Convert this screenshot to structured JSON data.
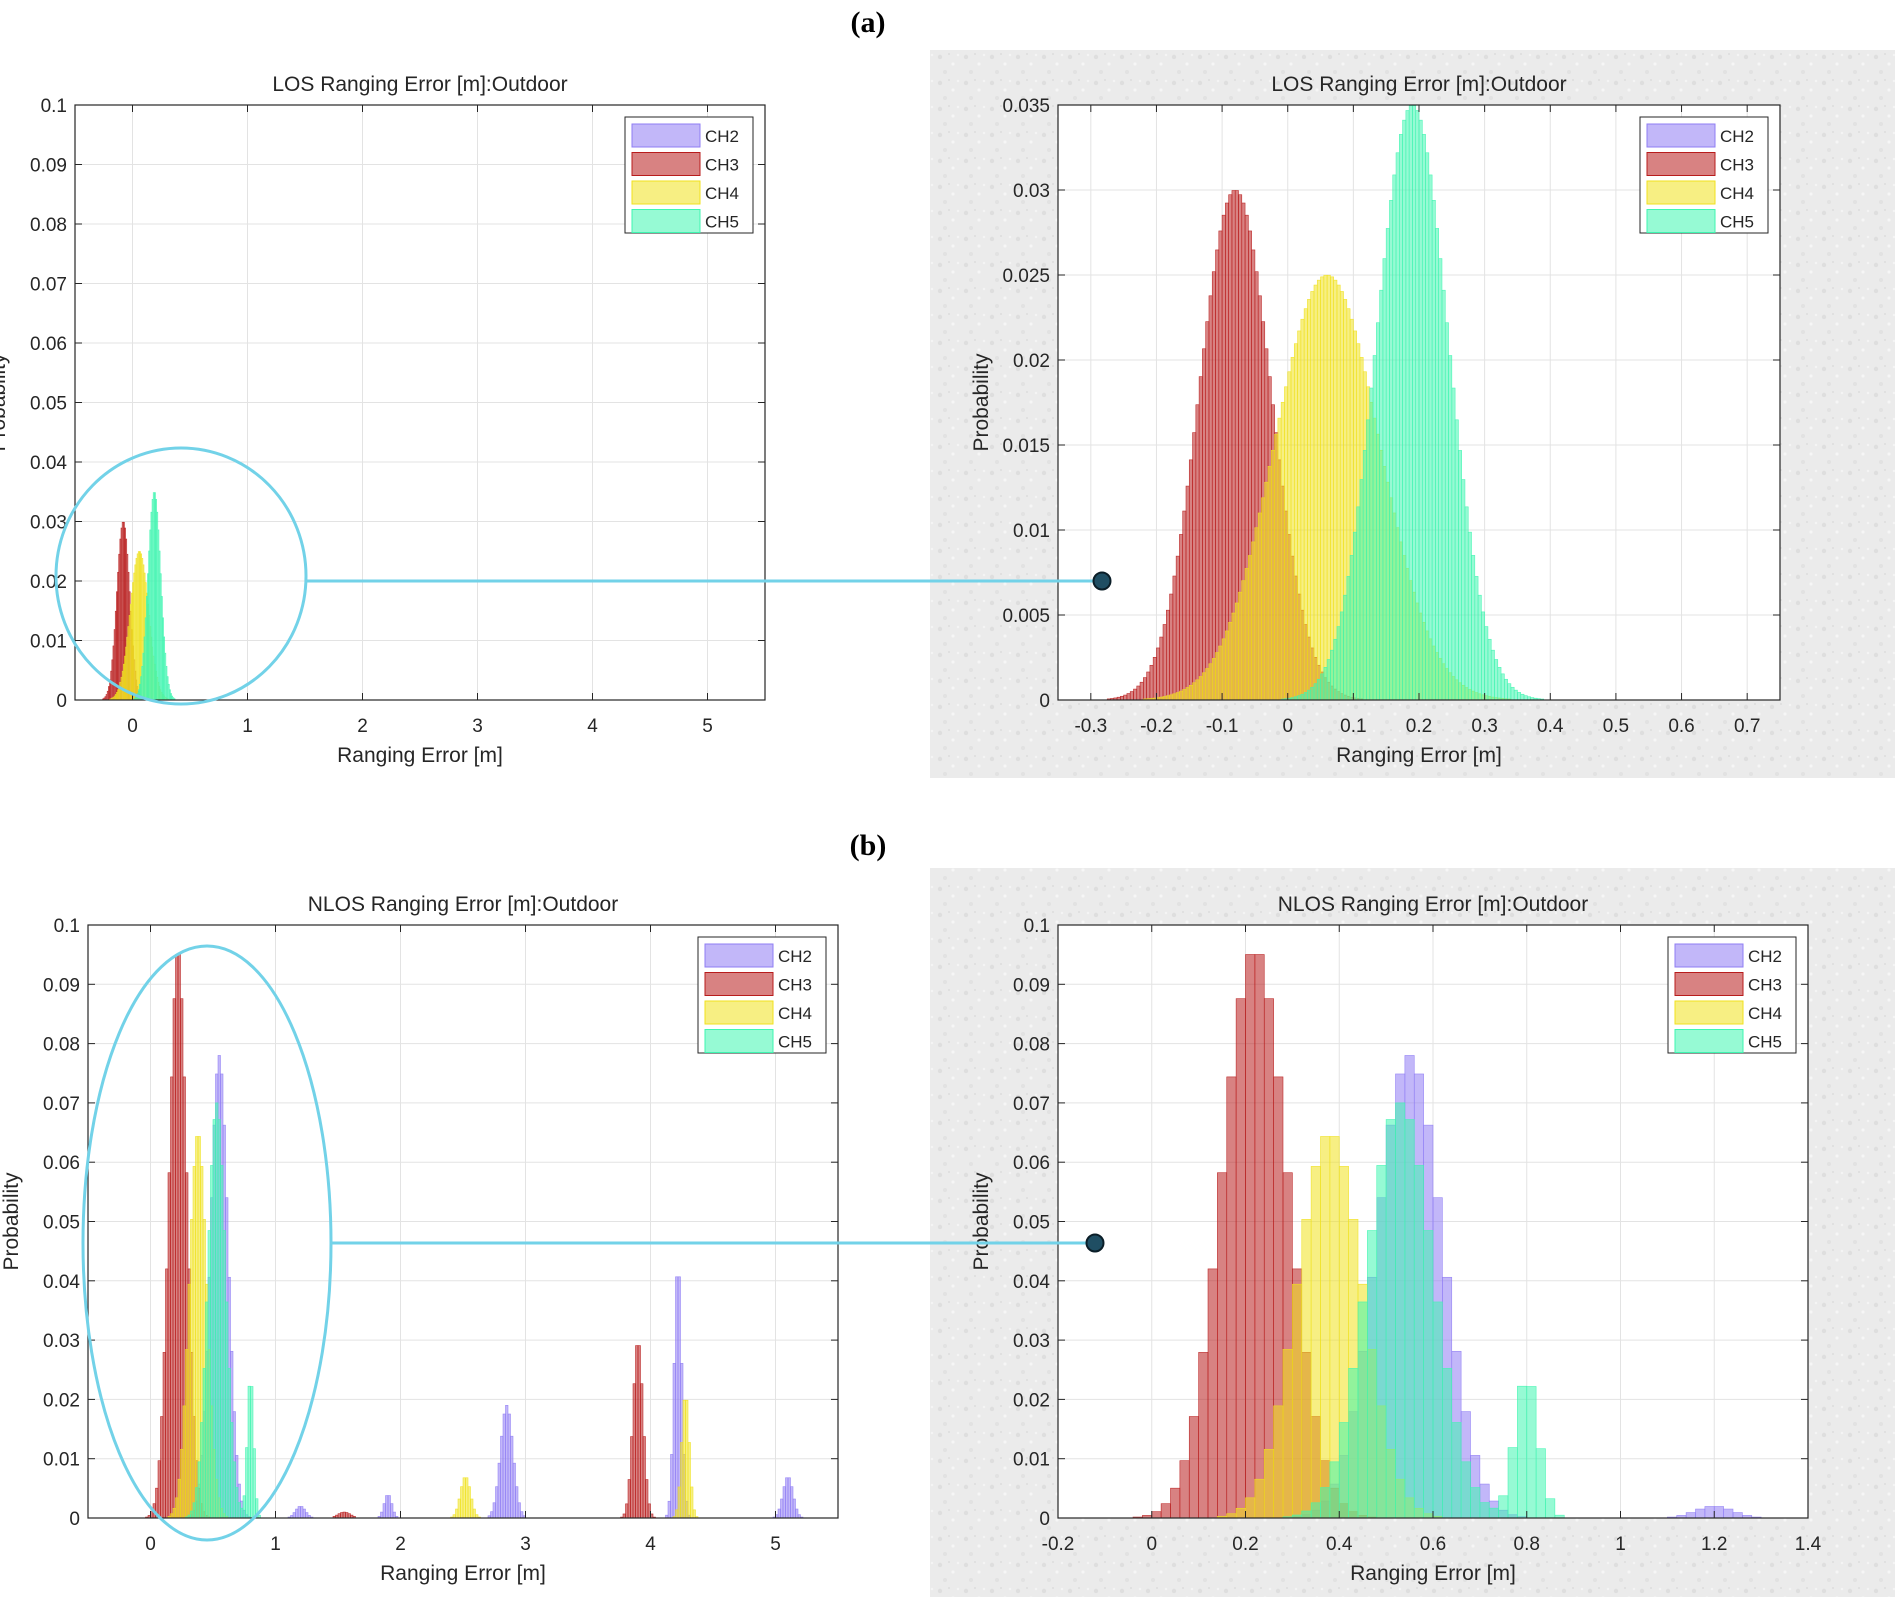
{
  "panels": [
    {
      "label": "(a)"
    },
    {
      "label": "(b)"
    }
  ],
  "colors": {
    "CH2": "#8f7cf4",
    "CH3": "#b81c1c",
    "CH4": "#f0e11e",
    "CH5": "#3ff5b0",
    "highlight": "#72d2e8",
    "grid": "#e3e3e3",
    "texture": "#ebebeb"
  },
  "chart_data": [
    {
      "id": "los-full",
      "type": "histogram",
      "title": "LOS Ranging Error [m]:Outdoor",
      "xlabel": "Ranging Error [m]",
      "ylabel": "Probability",
      "xlim": [
        -0.5,
        5.5
      ],
      "ylim": [
        0,
        0.1
      ],
      "xticks": [
        0,
        1,
        2,
        3,
        4,
        5
      ],
      "yticks": [
        0,
        0.01,
        0.02,
        0.03,
        0.04,
        0.05,
        0.06,
        0.07,
        0.08,
        0.09,
        0.1
      ],
      "binwidth": 0.01,
      "grid": true,
      "legend": [
        "CH2",
        "CH3",
        "CH4",
        "CH5"
      ],
      "legend_position": "top-right",
      "series": [
        {
          "name": "CH2",
          "peaks": []
        },
        {
          "name": "CH3",
          "peaks": [
            {
              "center": -0.08,
              "sigma": 0.055,
              "peak": 0.03
            }
          ]
        },
        {
          "name": "CH4",
          "peaks": [
            {
              "center": 0.06,
              "sigma": 0.08,
              "peak": 0.025
            }
          ]
        },
        {
          "name": "CH5",
          "peaks": [
            {
              "center": 0.19,
              "sigma": 0.055,
              "peak": 0.035
            }
          ]
        }
      ]
    },
    {
      "id": "los-zoom",
      "type": "histogram",
      "title": "LOS Ranging Error [m]:Outdoor",
      "xlabel": "Ranging Error [m]",
      "ylabel": "Probability",
      "xlim": [
        -0.35,
        0.75
      ],
      "ylim": [
        0,
        0.035
      ],
      "xticks": [
        -0.3,
        -0.2,
        -0.1,
        0,
        0.1,
        0.2,
        0.3,
        0.4,
        0.5,
        0.6,
        0.7
      ],
      "yticks": [
        0,
        0.005,
        0.01,
        0.015,
        0.02,
        0.025,
        0.03,
        0.035
      ],
      "binwidth": 0.005,
      "grid": true,
      "legend": [
        "CH2",
        "CH3",
        "CH4",
        "CH5"
      ],
      "legend_position": "top-right",
      "series": [
        {
          "name": "CH2",
          "peaks": []
        },
        {
          "name": "CH3",
          "peaks": [
            {
              "center": -0.08,
              "sigma": 0.055,
              "peak": 0.03
            }
          ]
        },
        {
          "name": "CH4",
          "peaks": [
            {
              "center": 0.06,
              "sigma": 0.08,
              "peak": 0.025
            }
          ]
        },
        {
          "name": "CH5",
          "peaks": [
            {
              "center": 0.19,
              "sigma": 0.055,
              "peak": 0.035
            }
          ]
        }
      ]
    },
    {
      "id": "nlos-full",
      "type": "histogram",
      "title": "NLOS Ranging Error [m]:Outdoor",
      "xlabel": "Ranging Error [m]",
      "ylabel": "Probability",
      "xlim": [
        -0.5,
        5.5
      ],
      "ylim": [
        0,
        0.1
      ],
      "xticks": [
        0,
        1,
        2,
        3,
        4,
        5
      ],
      "yticks": [
        0,
        0.01,
        0.02,
        0.03,
        0.04,
        0.05,
        0.06,
        0.07,
        0.08,
        0.09,
        0.1
      ],
      "binwidth": 0.02,
      "grid": true,
      "legend": [
        "CH2",
        "CH3",
        "CH4",
        "CH5"
      ],
      "legend_position": "top-right",
      "series": [
        {
          "name": "CH2",
          "peaks": [
            {
              "center": 0.55,
              "sigma": 0.07,
              "peak": 0.078
            },
            {
              "center": 1.2,
              "sigma": 0.04,
              "peak": 0.002
            },
            {
              "center": 1.9,
              "sigma": 0.03,
              "peak": 0.004
            },
            {
              "center": 2.85,
              "sigma": 0.05,
              "peak": 0.019
            },
            {
              "center": 4.22,
              "sigma": 0.03,
              "peak": 0.043
            },
            {
              "center": 5.1,
              "sigma": 0.04,
              "peak": 0.007
            }
          ]
        },
        {
          "name": "CH3",
          "peaks": [
            {
              "center": 0.22,
              "sigma": 0.07,
              "peak": 0.096
            },
            {
              "center": 1.55,
              "sigma": 0.05,
              "peak": 0.001
            },
            {
              "center": 3.9,
              "sigma": 0.04,
              "peak": 0.03
            }
          ]
        },
        {
          "name": "CH4",
          "peaks": [
            {
              "center": 0.38,
              "sigma": 0.07,
              "peak": 0.065
            },
            {
              "center": 2.52,
              "sigma": 0.04,
              "peak": 0.007
            },
            {
              "center": 4.28,
              "sigma": 0.03,
              "peak": 0.021
            }
          ]
        },
        {
          "name": "CH5",
          "peaks": [
            {
              "center": 0.53,
              "sigma": 0.07,
              "peak": 0.07
            },
            {
              "center": 0.8,
              "sigma": 0.025,
              "peak": 0.024
            }
          ]
        }
      ]
    },
    {
      "id": "nlos-zoom",
      "type": "histogram",
      "title": "NLOS Ranging Error [m]:Outdoor",
      "xlabel": "Ranging Error [m]",
      "ylabel": "Probability",
      "xlim": [
        -0.2,
        1.4
      ],
      "ylim": [
        0,
        0.1
      ],
      "xticks": [
        -0.2,
        0,
        0.2,
        0.4,
        0.6,
        0.8,
        1,
        1.2,
        1.4
      ],
      "yticks": [
        0,
        0.01,
        0.02,
        0.03,
        0.04,
        0.05,
        0.06,
        0.07,
        0.08,
        0.09,
        0.1
      ],
      "binwidth": 0.02,
      "grid": true,
      "legend": [
        "CH2",
        "CH3",
        "CH4",
        "CH5"
      ],
      "legend_position": "top-right",
      "series": [
        {
          "name": "CH2",
          "peaks": [
            {
              "center": 0.55,
              "sigma": 0.07,
              "peak": 0.078
            },
            {
              "center": 1.2,
              "sigma": 0.04,
              "peak": 0.002
            }
          ]
        },
        {
          "name": "CH3",
          "peaks": [
            {
              "center": 0.22,
              "sigma": 0.07,
              "peak": 0.096
            }
          ]
        },
        {
          "name": "CH4",
          "peaks": [
            {
              "center": 0.38,
              "sigma": 0.07,
              "peak": 0.065
            }
          ]
        },
        {
          "name": "CH5",
          "peaks": [
            {
              "center": 0.53,
              "sigma": 0.07,
              "peak": 0.07
            },
            {
              "center": 0.8,
              "sigma": 0.025,
              "peak": 0.024
            }
          ]
        }
      ]
    }
  ]
}
